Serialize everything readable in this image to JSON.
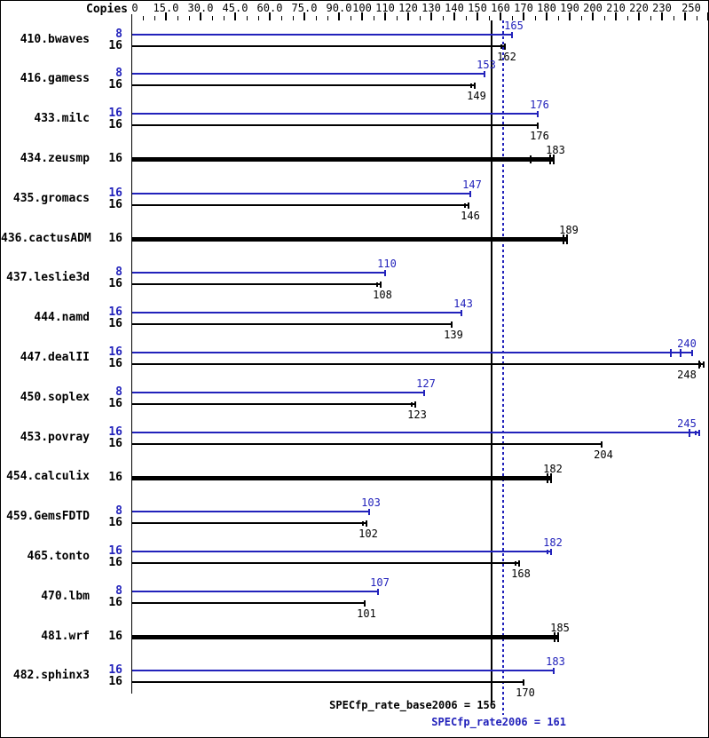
{
  "header": {
    "copies_label": "Copies"
  },
  "colors": {
    "peak_blue": "#2222bb",
    "base_black": "#000000",
    "background": "#ffffff"
  },
  "summary": {
    "base_label": "SPECfp_rate_base2006 = 156",
    "base_value": 156,
    "peak_label": "SPECfp_rate2006 = 161",
    "peak_value": 161
  },
  "chart_data": {
    "type": "bar",
    "orientation": "horizontal",
    "title": "",
    "xlabel": "",
    "ylabel": "Copies",
    "xlim": [
      0,
      250
    ],
    "grid": false,
    "axis_tick_labels": [
      {
        "v": 0,
        "text": "0"
      },
      {
        "v": 15,
        "text": "15.0"
      },
      {
        "v": 30,
        "text": "30.0"
      },
      {
        "v": 45,
        "text": "45.0"
      },
      {
        "v": 60,
        "text": "60.0"
      },
      {
        "v": 75,
        "text": "75.0"
      },
      {
        "v": 90,
        "text": "90.0"
      },
      {
        "v": 100,
        "text": "100"
      },
      {
        "v": 110,
        "text": "110"
      },
      {
        "v": 120,
        "text": "120"
      },
      {
        "v": 130,
        "text": "130"
      },
      {
        "v": 140,
        "text": "140"
      },
      {
        "v": 150,
        "text": "150"
      },
      {
        "v": 160,
        "text": "160"
      },
      {
        "v": 170,
        "text": "170"
      },
      {
        "v": 180,
        "text": "180"
      },
      {
        "v": 190,
        "text": "190"
      },
      {
        "v": 200,
        "text": "200"
      },
      {
        "v": 210,
        "text": "210"
      },
      {
        "v": 220,
        "text": "220"
      },
      {
        "v": 230,
        "text": "230"
      },
      {
        "v": 250,
        "text": "250"
      }
    ],
    "minor_tick_step": 5,
    "reference_lines": [
      {
        "name": "base",
        "value": 156,
        "style": "solid",
        "color": "#000000"
      },
      {
        "name": "peak",
        "value": 161,
        "style": "dotted",
        "color": "#2222bb"
      }
    ],
    "series_legend": [
      {
        "name": "peak (SPECfp_rate2006)",
        "color": "#2222bb"
      },
      {
        "name": "base (SPECfp_rate_base2006)",
        "color": "#000000"
      }
    ],
    "rows": [
      {
        "name": "410.bwaves",
        "bars": [
          {
            "type": "peak",
            "copies": "8",
            "value": 165
          },
          {
            "type": "base",
            "copies": "16",
            "value": 162,
            "double": true
          }
        ]
      },
      {
        "name": "416.gamess",
        "bars": [
          {
            "type": "peak",
            "copies": "8",
            "value": 153
          },
          {
            "type": "base",
            "copies": "16",
            "value": 149,
            "double": true
          }
        ]
      },
      {
        "name": "433.milc",
        "bars": [
          {
            "type": "peak",
            "copies": "16",
            "value": 176
          },
          {
            "type": "base",
            "copies": "16",
            "value": 176
          }
        ]
      },
      {
        "name": "434.zeusmp",
        "bars": [
          {
            "type": "base",
            "copies": "16",
            "value": 183,
            "thick": true,
            "double": true,
            "marks": [
              173
            ]
          }
        ]
      },
      {
        "name": "435.gromacs",
        "bars": [
          {
            "type": "peak",
            "copies": "16",
            "value": 147
          },
          {
            "type": "base",
            "copies": "16",
            "value": 146,
            "double": true
          }
        ]
      },
      {
        "name": "436.cactusADM",
        "bars": [
          {
            "type": "base",
            "copies": "16",
            "value": 189,
            "thick": true,
            "double": true
          }
        ]
      },
      {
        "name": "437.leslie3d",
        "bars": [
          {
            "type": "peak",
            "copies": "8",
            "value": 110
          },
          {
            "type": "base",
            "copies": "16",
            "value": 108,
            "double": true
          }
        ]
      },
      {
        "name": "444.namd",
        "bars": [
          {
            "type": "peak",
            "copies": "16",
            "value": 143
          },
          {
            "type": "base",
            "copies": "16",
            "value": 139
          }
        ]
      },
      {
        "name": "447.dealII",
        "bars": [
          {
            "type": "peak",
            "copies": "16",
            "value": 240,
            "end": 243,
            "marks": [
              234,
              238
            ]
          },
          {
            "type": "base",
            "copies": "16",
            "value": 248,
            "double": true,
            "marks": [
              246
            ]
          }
        ]
      },
      {
        "name": "450.soplex",
        "bars": [
          {
            "type": "peak",
            "copies": "8",
            "value": 127
          },
          {
            "type": "base",
            "copies": "16",
            "value": 123,
            "double": true
          }
        ]
      },
      {
        "name": "453.povray",
        "bars": [
          {
            "type": "peak",
            "copies": "16",
            "value": 245,
            "end": 246,
            "double": true,
            "marks": [
              242
            ]
          },
          {
            "type": "base",
            "copies": "16",
            "value": 204
          }
        ]
      },
      {
        "name": "454.calculix",
        "bars": [
          {
            "type": "base",
            "copies": "16",
            "value": 182,
            "thick": true,
            "double": true
          }
        ]
      },
      {
        "name": "459.GemsFDTD",
        "bars": [
          {
            "type": "peak",
            "copies": "8",
            "value": 103
          },
          {
            "type": "base",
            "copies": "16",
            "value": 102,
            "double": true
          }
        ]
      },
      {
        "name": "465.tonto",
        "bars": [
          {
            "type": "peak",
            "copies": "16",
            "value": 182,
            "double": true
          },
          {
            "type": "base",
            "copies": "16",
            "value": 168,
            "double": true
          }
        ]
      },
      {
        "name": "470.lbm",
        "bars": [
          {
            "type": "peak",
            "copies": "8",
            "value": 107
          },
          {
            "type": "base",
            "copies": "16",
            "value": 101
          }
        ]
      },
      {
        "name": "481.wrf",
        "bars": [
          {
            "type": "base",
            "copies": "16",
            "value": 185,
            "thick": true,
            "double": true
          }
        ]
      },
      {
        "name": "482.sphinx3",
        "bars": [
          {
            "type": "peak",
            "copies": "16",
            "value": 183
          },
          {
            "type": "base",
            "copies": "16",
            "value": 170
          }
        ]
      }
    ]
  }
}
